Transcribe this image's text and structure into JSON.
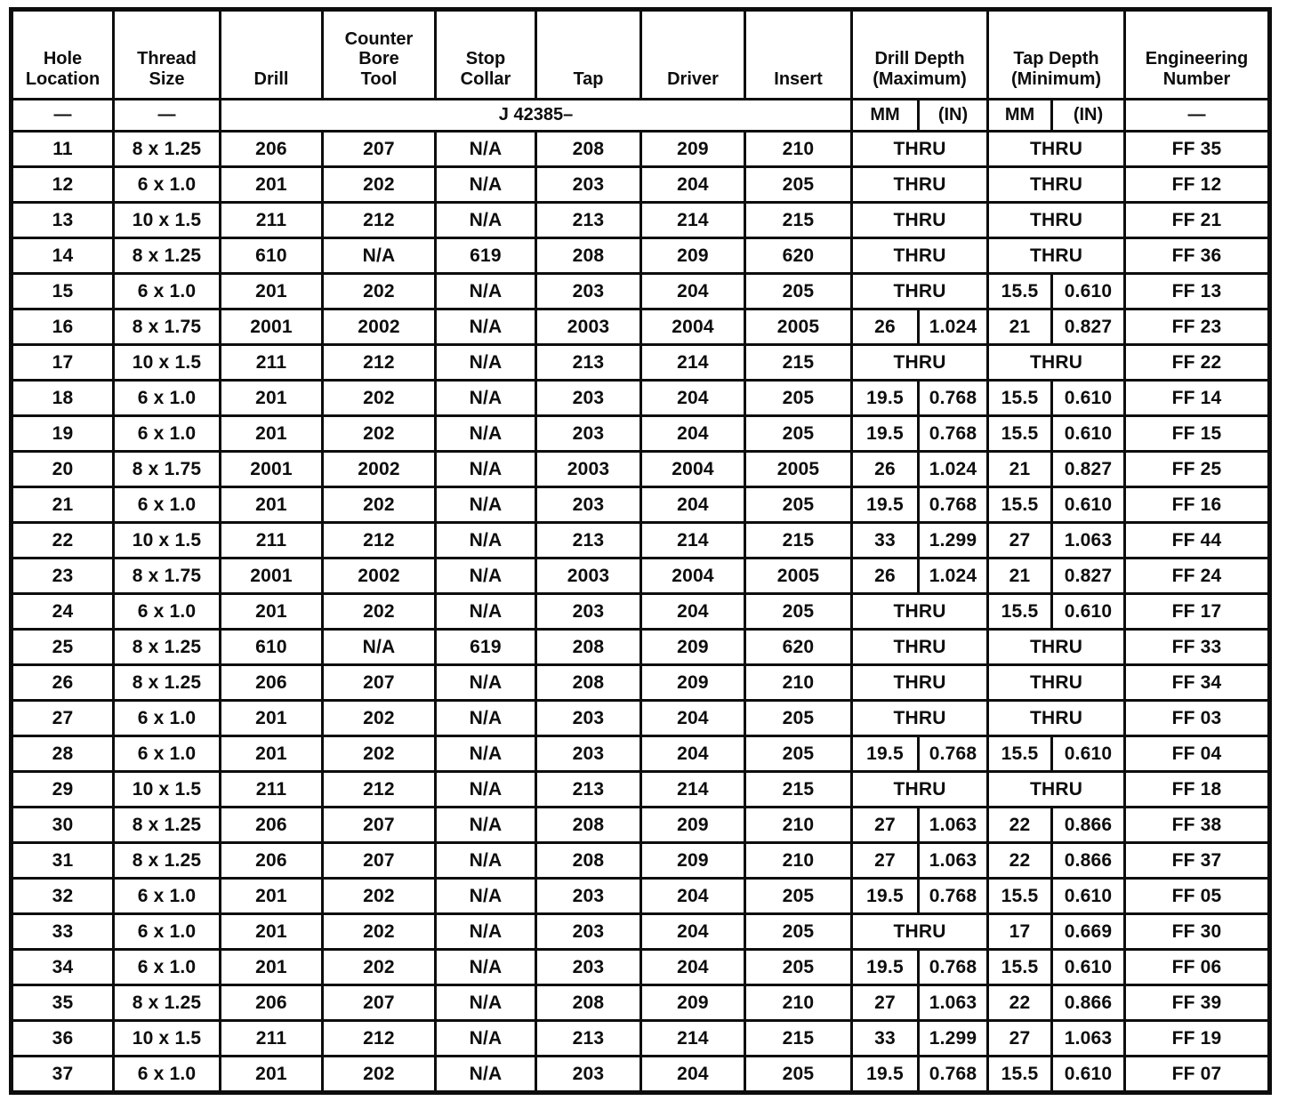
{
  "table": {
    "header": {
      "columns": [
        {
          "key": "hole",
          "label": "Hole\nLocation"
        },
        {
          "key": "thread",
          "label": "Thread\nSize"
        },
        {
          "key": "drill",
          "label": "Drill"
        },
        {
          "key": "counter_bore",
          "label": "Counter\nBore\nTool"
        },
        {
          "key": "stop_collar",
          "label": "Stop\nCollar"
        },
        {
          "key": "tap",
          "label": "Tap"
        },
        {
          "key": "driver",
          "label": "Driver"
        },
        {
          "key": "insert",
          "label": "Insert"
        },
        {
          "key": "drill_depth",
          "label": "Drill Depth\n(Maximum)",
          "span": 2
        },
        {
          "key": "tap_depth",
          "label": "Tap Depth\n(Minimum)",
          "span": 2
        },
        {
          "key": "engineering",
          "label": "Engineering\nNumber"
        }
      ],
      "subrow": {
        "hole": "—",
        "thread": "—",
        "tool_group": "J 42385–",
        "drill_depth_units": [
          "MM",
          "(IN)"
        ],
        "tap_depth_units": [
          "MM",
          "(IN)"
        ],
        "engineering": "—"
      }
    },
    "rows": [
      {
        "hole": "11",
        "thread": "8 x 1.25",
        "drill": "206",
        "counter_bore": "207",
        "stop_collar": "N/A",
        "tap": "208",
        "driver": "209",
        "insert": "210",
        "drill_depth": "THRU",
        "tap_depth": "THRU",
        "engineering": "FF 35"
      },
      {
        "hole": "12",
        "thread": "6 x 1.0",
        "drill": "201",
        "counter_bore": "202",
        "stop_collar": "N/A",
        "tap": "203",
        "driver": "204",
        "insert": "205",
        "drill_depth": "THRU",
        "tap_depth": "THRU",
        "engineering": "FF 12"
      },
      {
        "hole": "13",
        "thread": "10 x 1.5",
        "drill": "211",
        "counter_bore": "212",
        "stop_collar": "N/A",
        "tap": "213",
        "driver": "214",
        "insert": "215",
        "drill_depth": "THRU",
        "tap_depth": "THRU",
        "engineering": "FF 21"
      },
      {
        "hole": "14",
        "thread": "8 x 1.25",
        "drill": "610",
        "counter_bore": "N/A",
        "stop_collar": "619",
        "tap": "208",
        "driver": "209",
        "insert": "620",
        "drill_depth": "THRU",
        "tap_depth": "THRU",
        "engineering": "FF 36"
      },
      {
        "hole": "15",
        "thread": "6 x 1.0",
        "drill": "201",
        "counter_bore": "202",
        "stop_collar": "N/A",
        "tap": "203",
        "driver": "204",
        "insert": "205",
        "drill_depth": "THRU",
        "tap_depth": {
          "mm": "15.5",
          "in": "0.610"
        },
        "engineering": "FF 13"
      },
      {
        "hole": "16",
        "thread": "8 x 1.75",
        "drill": "2001",
        "counter_bore": "2002",
        "stop_collar": "N/A",
        "tap": "2003",
        "driver": "2004",
        "insert": "2005",
        "drill_depth": {
          "mm": "26",
          "in": "1.024"
        },
        "tap_depth": {
          "mm": "21",
          "in": "0.827"
        },
        "engineering": "FF 23"
      },
      {
        "hole": "17",
        "thread": "10 x 1.5",
        "drill": "211",
        "counter_bore": "212",
        "stop_collar": "N/A",
        "tap": "213",
        "driver": "214",
        "insert": "215",
        "drill_depth": "THRU",
        "tap_depth": "THRU",
        "engineering": "FF 22"
      },
      {
        "hole": "18",
        "thread": "6 x 1.0",
        "drill": "201",
        "counter_bore": "202",
        "stop_collar": "N/A",
        "tap": "203",
        "driver": "204",
        "insert": "205",
        "drill_depth": {
          "mm": "19.5",
          "in": "0.768"
        },
        "tap_depth": {
          "mm": "15.5",
          "in": "0.610"
        },
        "engineering": "FF 14"
      },
      {
        "hole": "19",
        "thread": "6 x 1.0",
        "drill": "201",
        "counter_bore": "202",
        "stop_collar": "N/A",
        "tap": "203",
        "driver": "204",
        "insert": "205",
        "drill_depth": {
          "mm": "19.5",
          "in": "0.768"
        },
        "tap_depth": {
          "mm": "15.5",
          "in": "0.610"
        },
        "engineering": "FF 15"
      },
      {
        "hole": "20",
        "thread": "8 x 1.75",
        "drill": "2001",
        "counter_bore": "2002",
        "stop_collar": "N/A",
        "tap": "2003",
        "driver": "2004",
        "insert": "2005",
        "drill_depth": {
          "mm": "26",
          "in": "1.024"
        },
        "tap_depth": {
          "mm": "21",
          "in": "0.827"
        },
        "engineering": "FF 25"
      },
      {
        "hole": "21",
        "thread": "6 x 1.0",
        "drill": "201",
        "counter_bore": "202",
        "stop_collar": "N/A",
        "tap": "203",
        "driver": "204",
        "insert": "205",
        "drill_depth": {
          "mm": "19.5",
          "in": "0.768"
        },
        "tap_depth": {
          "mm": "15.5",
          "in": "0.610"
        },
        "engineering": "FF 16"
      },
      {
        "hole": "22",
        "thread": "10 x 1.5",
        "drill": "211",
        "counter_bore": "212",
        "stop_collar": "N/A",
        "tap": "213",
        "driver": "214",
        "insert": "215",
        "drill_depth": {
          "mm": "33",
          "in": "1.299"
        },
        "tap_depth": {
          "mm": "27",
          "in": "1.063"
        },
        "engineering": "FF 44"
      },
      {
        "hole": "23",
        "thread": "8 x 1.75",
        "drill": "2001",
        "counter_bore": "2002",
        "stop_collar": "N/A",
        "tap": "2003",
        "driver": "2004",
        "insert": "2005",
        "drill_depth": {
          "mm": "26",
          "in": "1.024"
        },
        "tap_depth": {
          "mm": "21",
          "in": "0.827"
        },
        "engineering": "FF 24"
      },
      {
        "hole": "24",
        "thread": "6 x 1.0",
        "drill": "201",
        "counter_bore": "202",
        "stop_collar": "N/A",
        "tap": "203",
        "driver": "204",
        "insert": "205",
        "drill_depth": "THRU",
        "tap_depth": {
          "mm": "15.5",
          "in": "0.610"
        },
        "engineering": "FF 17"
      },
      {
        "hole": "25",
        "thread": "8 x 1.25",
        "drill": "610",
        "counter_bore": "N/A",
        "stop_collar": "619",
        "tap": "208",
        "driver": "209",
        "insert": "620",
        "drill_depth": "THRU",
        "tap_depth": "THRU",
        "engineering": "FF 33"
      },
      {
        "hole": "26",
        "thread": "8 x 1.25",
        "drill": "206",
        "counter_bore": "207",
        "stop_collar": "N/A",
        "tap": "208",
        "driver": "209",
        "insert": "210",
        "drill_depth": "THRU",
        "tap_depth": "THRU",
        "engineering": "FF 34"
      },
      {
        "hole": "27",
        "thread": "6 x 1.0",
        "drill": "201",
        "counter_bore": "202",
        "stop_collar": "N/A",
        "tap": "203",
        "driver": "204",
        "insert": "205",
        "drill_depth": "THRU",
        "tap_depth": "THRU",
        "engineering": "FF 03"
      },
      {
        "hole": "28",
        "thread": "6 x 1.0",
        "drill": "201",
        "counter_bore": "202",
        "stop_collar": "N/A",
        "tap": "203",
        "driver": "204",
        "insert": "205",
        "drill_depth": {
          "mm": "19.5",
          "in": "0.768"
        },
        "tap_depth": {
          "mm": "15.5",
          "in": "0.610"
        },
        "engineering": "FF 04"
      },
      {
        "hole": "29",
        "thread": "10 x 1.5",
        "drill": "211",
        "counter_bore": "212",
        "stop_collar": "N/A",
        "tap": "213",
        "driver": "214",
        "insert": "215",
        "drill_depth": "THRU",
        "tap_depth": "THRU",
        "engineering": "FF 18"
      },
      {
        "hole": "30",
        "thread": "8 x 1.25",
        "drill": "206",
        "counter_bore": "207",
        "stop_collar": "N/A",
        "tap": "208",
        "driver": "209",
        "insert": "210",
        "drill_depth": {
          "mm": "27",
          "in": "1.063"
        },
        "tap_depth": {
          "mm": "22",
          "in": "0.866"
        },
        "engineering": "FF 38"
      },
      {
        "hole": "31",
        "thread": "8 x 1.25",
        "drill": "206",
        "counter_bore": "207",
        "stop_collar": "N/A",
        "tap": "208",
        "driver": "209",
        "insert": "210",
        "drill_depth": {
          "mm": "27",
          "in": "1.063"
        },
        "tap_depth": {
          "mm": "22",
          "in": "0.866"
        },
        "engineering": "FF 37"
      },
      {
        "hole": "32",
        "thread": "6 x 1.0",
        "drill": "201",
        "counter_bore": "202",
        "stop_collar": "N/A",
        "tap": "203",
        "driver": "204",
        "insert": "205",
        "drill_depth": {
          "mm": "19.5",
          "in": "0.768"
        },
        "tap_depth": {
          "mm": "15.5",
          "in": "0.610"
        },
        "engineering": "FF 05"
      },
      {
        "hole": "33",
        "thread": "6 x 1.0",
        "drill": "201",
        "counter_bore": "202",
        "stop_collar": "N/A",
        "tap": "203",
        "driver": "204",
        "insert": "205",
        "drill_depth": "THRU",
        "tap_depth": {
          "mm": "17",
          "in": "0.669"
        },
        "engineering": "FF 30"
      },
      {
        "hole": "34",
        "thread": "6 x 1.0",
        "drill": "201",
        "counter_bore": "202",
        "stop_collar": "N/A",
        "tap": "203",
        "driver": "204",
        "insert": "205",
        "drill_depth": {
          "mm": "19.5",
          "in": "0.768"
        },
        "tap_depth": {
          "mm": "15.5",
          "in": "0.610"
        },
        "engineering": "FF 06"
      },
      {
        "hole": "35",
        "thread": "8 x 1.25",
        "drill": "206",
        "counter_bore": "207",
        "stop_collar": "N/A",
        "tap": "208",
        "driver": "209",
        "insert": "210",
        "drill_depth": {
          "mm": "27",
          "in": "1.063"
        },
        "tap_depth": {
          "mm": "22",
          "in": "0.866"
        },
        "engineering": "FF 39"
      },
      {
        "hole": "36",
        "thread": "10 x 1.5",
        "drill": "211",
        "counter_bore": "212",
        "stop_collar": "N/A",
        "tap": "213",
        "driver": "214",
        "insert": "215",
        "drill_depth": {
          "mm": "33",
          "in": "1.299"
        },
        "tap_depth": {
          "mm": "27",
          "in": "1.063"
        },
        "engineering": "FF 19"
      },
      {
        "hole": "37",
        "thread": "6 x 1.0",
        "drill": "201",
        "counter_bore": "202",
        "stop_collar": "N/A",
        "tap": "203",
        "driver": "204",
        "insert": "205",
        "drill_depth": {
          "mm": "19.5",
          "in": "0.768"
        },
        "tap_depth": {
          "mm": "15.5",
          "in": "0.610"
        },
        "engineering": "FF 07"
      }
    ]
  }
}
